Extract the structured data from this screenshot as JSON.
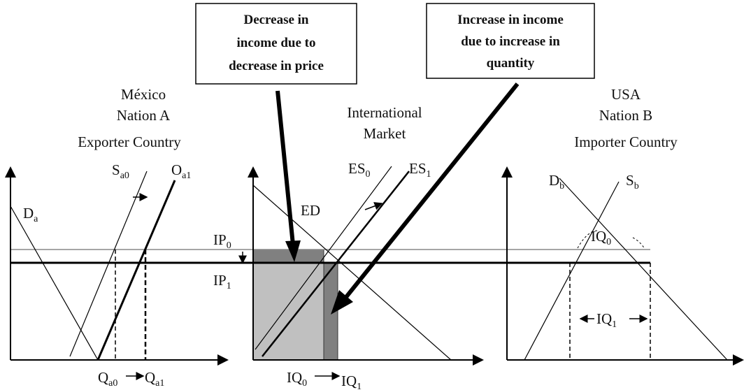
{
  "boxes": [
    {
      "lines": [
        "Decrease in",
        "income due to",
        "decrease in price"
      ]
    },
    {
      "lines": [
        "Increase in income",
        "due to increase in",
        "quantity"
      ]
    }
  ],
  "panels": [
    {
      "title": [
        "México",
        "Nation A",
        "Exporter Country"
      ],
      "labels": {
        "supply0": {
          "base": "S",
          "sub": "a0"
        },
        "supply1": {
          "base": "O",
          "sub": "a1"
        },
        "demand": {
          "base": "D",
          "sub": "a"
        },
        "q0": {
          "base": "Q",
          "sub": "a0"
        },
        "q1": {
          "base": "Q",
          "sub": "a1"
        }
      }
    },
    {
      "title": [
        "International",
        "Market"
      ],
      "labels": {
        "es0": {
          "base": "ES",
          "sub": "0"
        },
        "es1": {
          "base": "ES",
          "sub": "1"
        },
        "ed": "ED",
        "ip0": {
          "base": "IP",
          "sub": "0"
        },
        "ip1": {
          "base": "IP",
          "sub": "1"
        },
        "iq0": {
          "base": "IQ",
          "sub": "0"
        },
        "iq1": {
          "base": "IQ",
          "sub": "1"
        }
      }
    },
    {
      "title": [
        "USA",
        "Nation B",
        "Importer Country"
      ],
      "labels": {
        "demand": {
          "base": "D",
          "sub": "b"
        },
        "supply": {
          "base": "S",
          "sub": "b"
        },
        "iq0": {
          "base": "IQ",
          "sub": "0"
        },
        "iq1": {
          "base": "IQ",
          "sub": "1"
        }
      }
    }
  ]
}
